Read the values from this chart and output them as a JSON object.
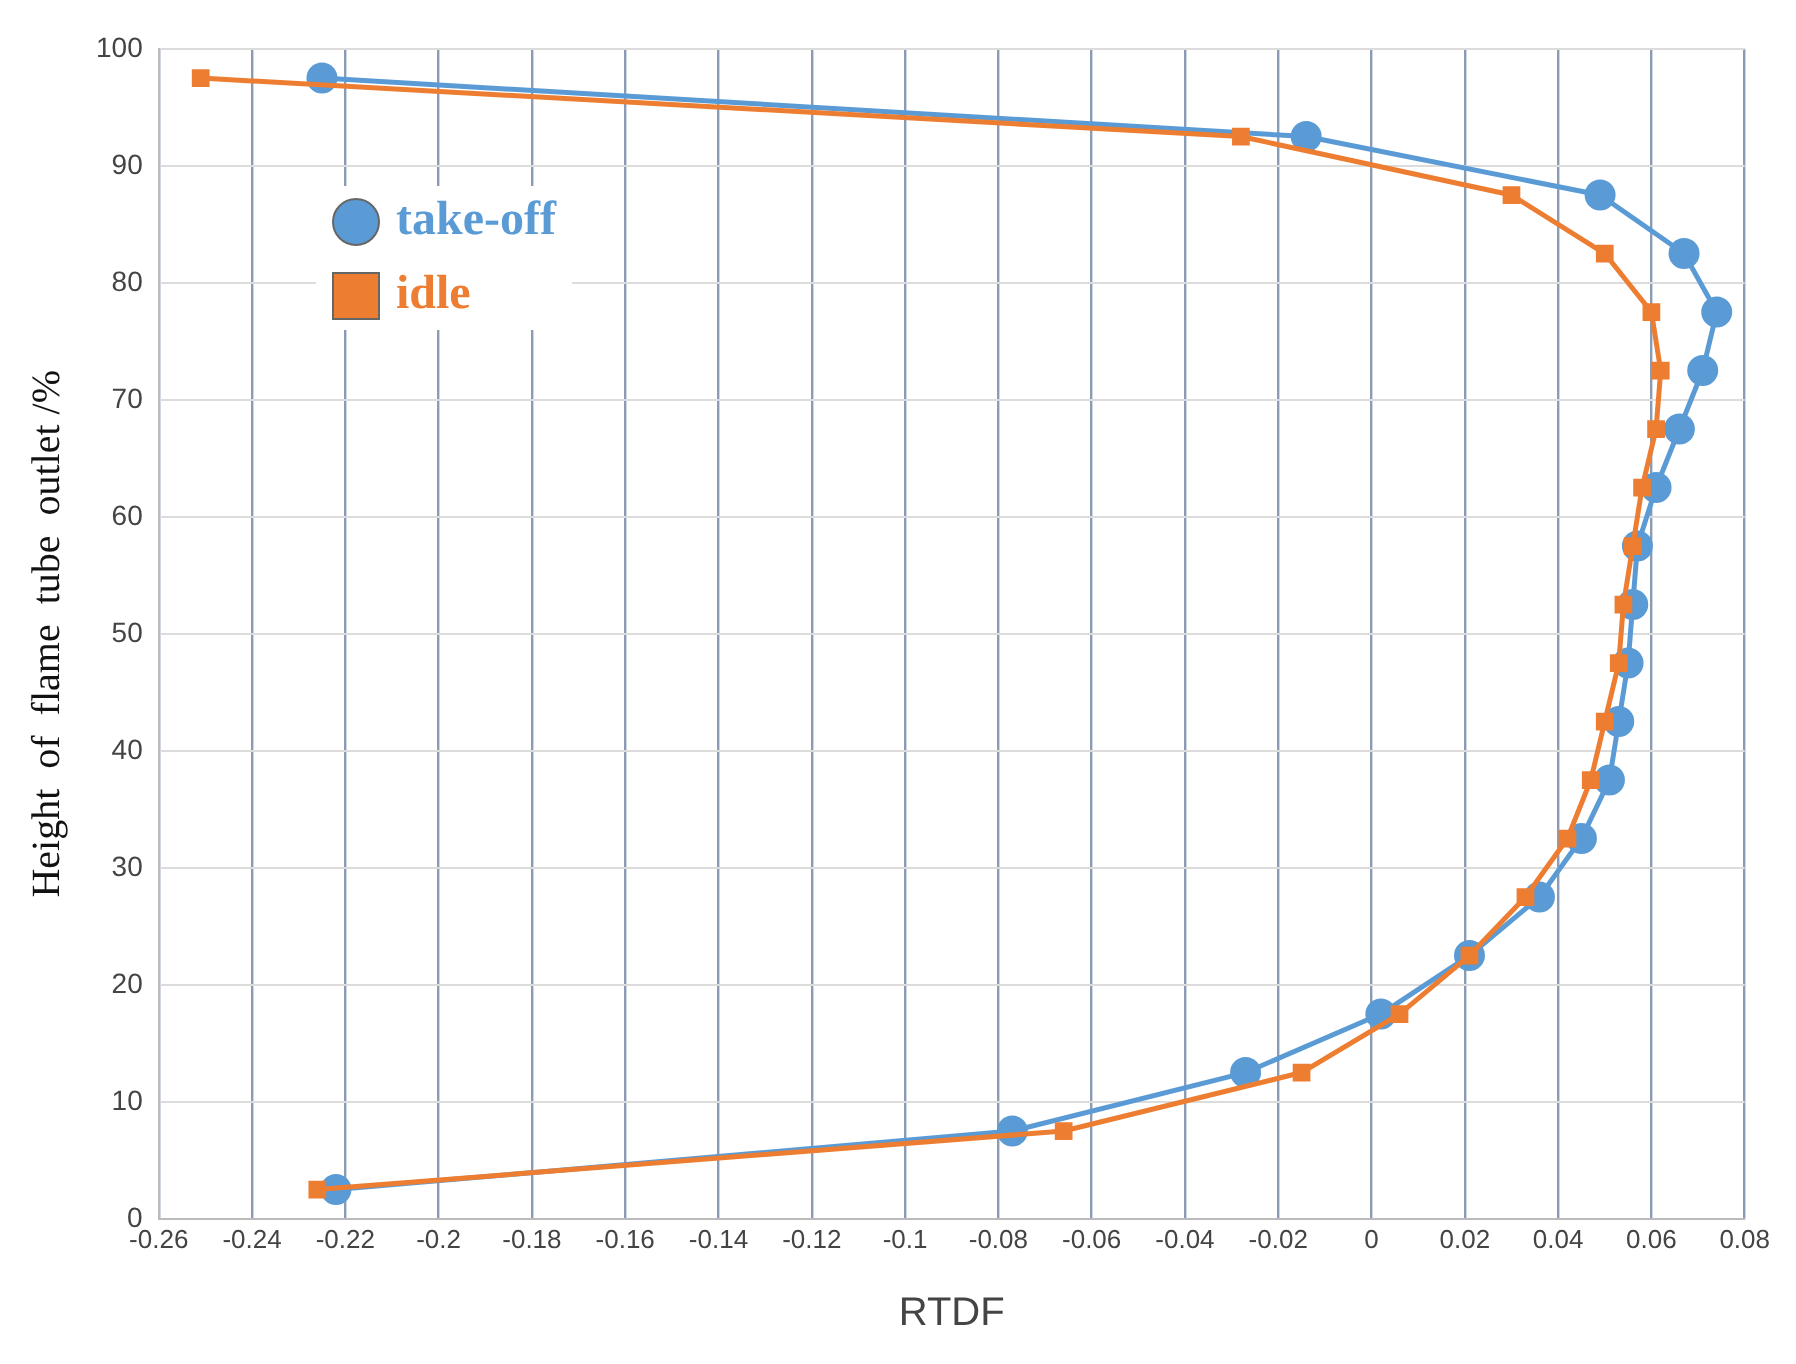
{
  "chart_data": {
    "type": "line",
    "xlabel": "RTDF",
    "ylabel": "Height  of  flame  tube  outlet /%",
    "xlim": [
      -0.26,
      0.08
    ],
    "xticks": [
      -0.26,
      -0.24,
      -0.22,
      -0.2,
      -0.18,
      -0.16,
      -0.14,
      -0.12,
      -0.1,
      -0.08,
      -0.06,
      -0.04,
      -0.02,
      0,
      0.02,
      0.04,
      0.06,
      0.08
    ],
    "ylim": [
      0,
      100
    ],
    "yticks": [
      0,
      10,
      20,
      30,
      40,
      50,
      60,
      70,
      80,
      90,
      100
    ],
    "grid": true,
    "legend": "top left",
    "line_style": "solid",
    "series": [
      {
        "name": "take-off",
        "color": "#5b9bd5",
        "marker": "circle",
        "x": [
          -0.222,
          -0.077,
          -0.027,
          0.002,
          0.021,
          0.036,
          0.045,
          0.051,
          0.053,
          0.055,
          0.056,
          0.057,
          0.061,
          0.066,
          0.071,
          0.074,
          0.067,
          0.049,
          -0.014,
          -0.225
        ],
        "values": [
          2.5,
          7.5,
          12.5,
          17.5,
          22.5,
          27.5,
          32.5,
          37.5,
          42.5,
          47.5,
          52.5,
          57.5,
          62.5,
          67.5,
          72.5,
          77.5,
          82.5,
          87.5,
          92.5,
          97.5
        ]
      },
      {
        "name": "idle",
        "color": "#ed7d31",
        "marker": "square",
        "x": [
          -0.226,
          -0.066,
          -0.015,
          0.006,
          0.021,
          0.033,
          0.042,
          0.047,
          0.05,
          0.053,
          0.054,
          0.056,
          0.058,
          0.061,
          0.062,
          0.06,
          0.05,
          0.03,
          -0.028,
          -0.251
        ],
        "values": [
          2.5,
          7.5,
          12.5,
          17.5,
          22.5,
          27.5,
          32.5,
          37.5,
          42.5,
          47.5,
          52.5,
          57.5,
          62.5,
          67.5,
          72.5,
          77.5,
          82.5,
          87.5,
          92.5,
          97.5
        ]
      }
    ]
  }
}
